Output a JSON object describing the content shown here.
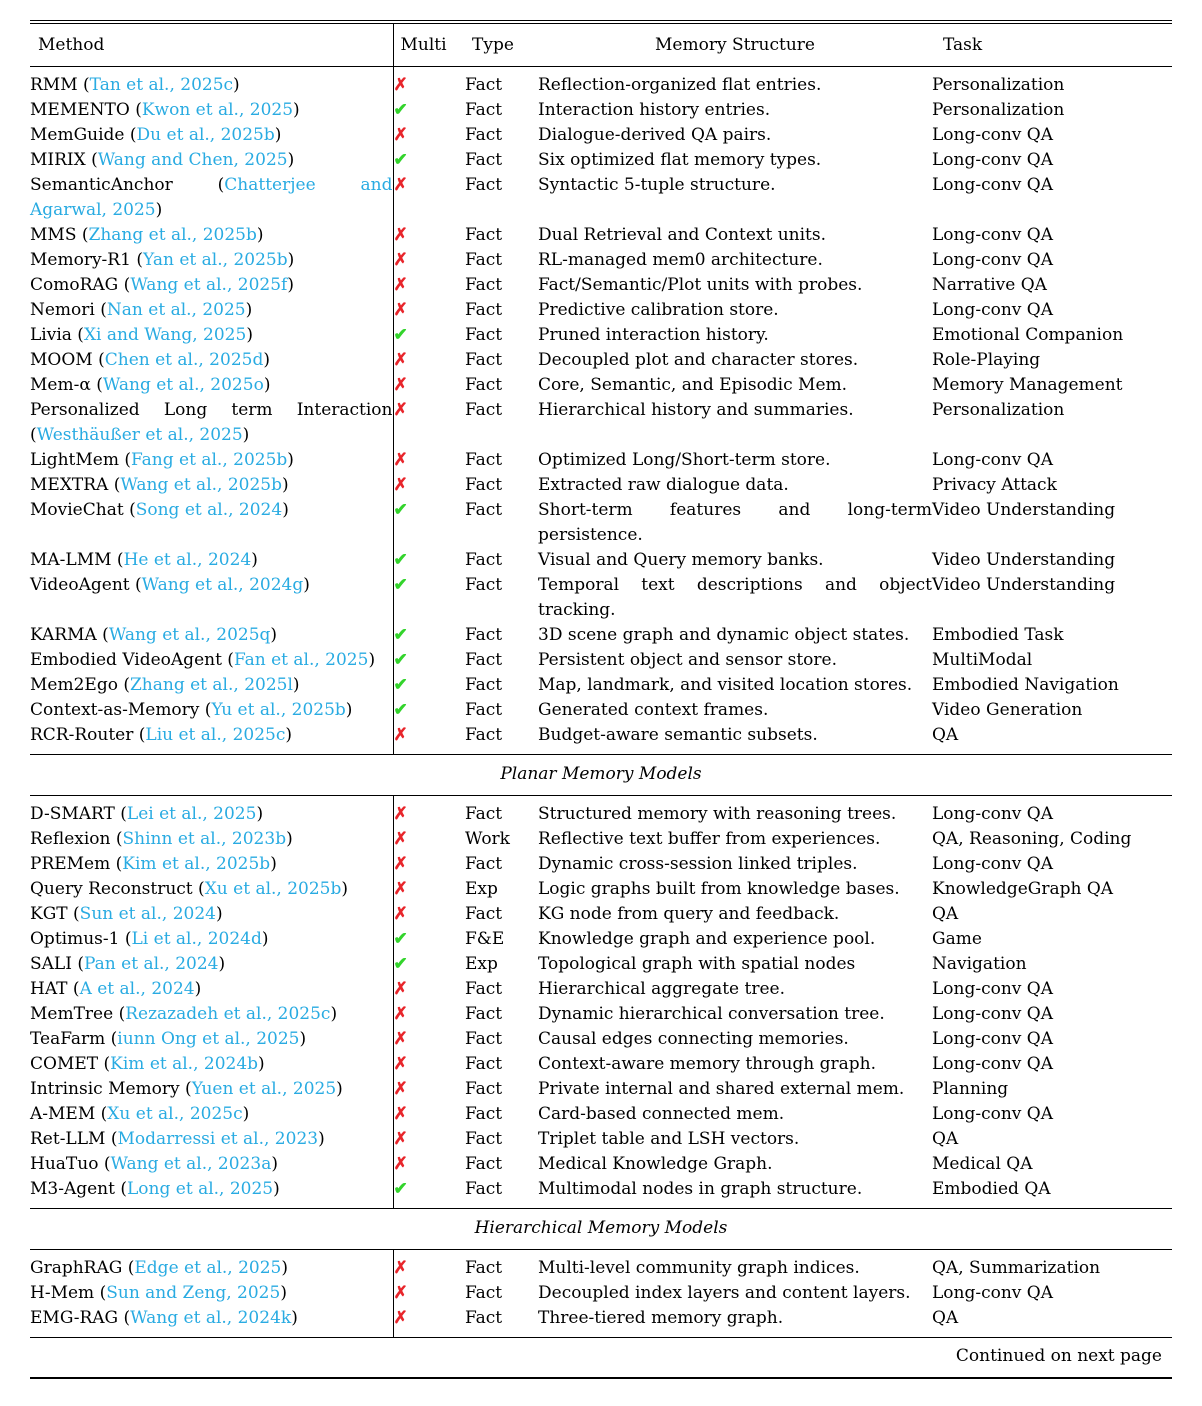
{
  "table": {
    "columns": [
      "Method",
      "Multi",
      "Type",
      "Memory Structure",
      "Task"
    ],
    "citation_format": {
      "open": " (",
      "close": ")"
    },
    "symbols": {
      "check": "✔",
      "cross": "✗"
    },
    "colors": {
      "citation": "#29abe2",
      "check": "#33d42c",
      "cross": "#e8252b",
      "rule": "#000000"
    },
    "footer": "Continued on next page",
    "sections": [
      {
        "title": "",
        "rows": [
          {
            "method": "RMM",
            "citation": "Tan et al., 2025c",
            "multi": false,
            "type": "Fact",
            "structure": "Reflection-organized flat entries.",
            "task": "Personalization"
          },
          {
            "method": "MEMENTO",
            "citation": "Kwon et al., 2025",
            "multi": true,
            "type": "Fact",
            "structure": "Interaction history entries.",
            "task": "Personalization"
          },
          {
            "method": "MemGuide",
            "citation": "Du et al., 2025b",
            "multi": false,
            "type": "Fact",
            "structure": "Dialogue-derived QA pairs.",
            "task": "Long-conv QA"
          },
          {
            "method": "MIRIX",
            "citation": "Wang and Chen, 2025",
            "multi": true,
            "type": "Fact",
            "structure": "Six optimized flat memory types.",
            "task": "Long-conv QA"
          },
          {
            "method": "SemanticAnchor",
            "citation": "Chatterjee and Agarwal, 2025",
            "multi": false,
            "type": "Fact",
            "structure": "Syntactic 5-tuple structure.",
            "task": "Long-conv QA"
          },
          {
            "method": "MMS",
            "citation": "Zhang et al., 2025b",
            "multi": false,
            "type": "Fact",
            "structure": "Dual Retrieval and Context units.",
            "task": "Long-conv QA"
          },
          {
            "method": "Memory-R1",
            "citation": "Yan et al., 2025b",
            "multi": false,
            "type": "Fact",
            "structure": "RL-managed mem0 architecture.",
            "task": "Long-conv QA"
          },
          {
            "method": "ComoRAG",
            "citation": "Wang et al., 2025f",
            "multi": false,
            "type": "Fact",
            "structure": "Fact/Semantic/Plot units with probes.",
            "task": "Narrative QA"
          },
          {
            "method": "Nemori",
            "citation": "Nan et al., 2025",
            "multi": false,
            "type": "Fact",
            "structure": "Predictive calibration store.",
            "task": "Long-conv QA"
          },
          {
            "method": "Livia",
            "citation": "Xi and Wang, 2025",
            "multi": true,
            "type": "Fact",
            "structure": "Pruned interaction history.",
            "task": "Emotional Companion"
          },
          {
            "method": "MOOM",
            "citation": "Chen et al., 2025d",
            "multi": false,
            "type": "Fact",
            "structure": "Decoupled plot and character stores.",
            "task": "Role-Playing"
          },
          {
            "method": "Mem-α",
            "citation": "Wang et al., 2025o",
            "multi": false,
            "type": "Fact",
            "structure": "Core, Semantic, and Episodic Mem.",
            "task": "Memory Management"
          },
          {
            "method": "Personalized Long term Interaction",
            "citation": "Westhäußer et al., 2025",
            "multi": false,
            "type": "Fact",
            "structure": "Hierarchical history and summaries.",
            "task": "Personalization"
          },
          {
            "method": "LightMem",
            "citation": "Fang et al., 2025b",
            "multi": false,
            "type": "Fact",
            "structure": "Optimized Long/Short-term store.",
            "task": "Long-conv QA"
          },
          {
            "method": "MEXTRA",
            "citation": "Wang et al., 2025b",
            "multi": false,
            "type": "Fact",
            "structure": "Extracted raw dialogue data.",
            "task": "Privacy Attack"
          },
          {
            "method": "MovieChat",
            "citation": "Song et al., 2024",
            "multi": true,
            "type": "Fact",
            "structure": "Short-term features and long-term persistence.",
            "task": "Video Understanding"
          },
          {
            "method": "MA-LMM",
            "citation": "He et al., 2024",
            "multi": true,
            "type": "Fact",
            "structure": "Visual and Query memory banks.",
            "task": "Video Understanding"
          },
          {
            "method": "VideoAgent",
            "citation": "Wang et al., 2024g",
            "multi": true,
            "type": "Fact",
            "structure": "Temporal text descriptions and object tracking.",
            "task": "Video Understanding"
          },
          {
            "method": "KARMA",
            "citation": "Wang et al., 2025q",
            "multi": true,
            "type": "Fact",
            "structure": "3D scene graph and dynamic object states.",
            "task": "Embodied Task"
          },
          {
            "method": "Embodied VideoAgent",
            "citation": "Fan et al., 2025",
            "multi": true,
            "type": "Fact",
            "structure": "Persistent object and sensor store.",
            "task": "MultiModal"
          },
          {
            "method": "Mem2Ego",
            "citation": "Zhang et al., 2025l",
            "multi": true,
            "type": "Fact",
            "structure": "Map, landmark, and visited location stores.",
            "task": "Embodied Navigation"
          },
          {
            "method": "Context-as-Memory",
            "citation": "Yu et al., 2025b",
            "multi": true,
            "type": "Fact",
            "structure": "Generated context frames.",
            "task": "Video Generation"
          },
          {
            "method": "RCR-Router",
            "citation": "Liu et al., 2025c",
            "multi": false,
            "type": "Fact",
            "structure": "Budget-aware semantic subsets.",
            "task": "QA"
          }
        ]
      },
      {
        "title": "Planar Memory Models",
        "rows": [
          {
            "method": "D-SMART",
            "citation": "Lei et al., 2025",
            "multi": false,
            "type": "Fact",
            "structure": "Structured memory with reasoning trees.",
            "task": "Long-conv QA"
          },
          {
            "method": "Reflexion",
            "citation": "Shinn et al., 2023b",
            "multi": false,
            "type": "Work",
            "structure": "Reflective text buffer from experiences.",
            "task": "QA, Reasoning, Coding"
          },
          {
            "method": "PREMem",
            "citation": "Kim et al., 2025b",
            "multi": false,
            "type": "Fact",
            "structure": "Dynamic cross-session linked triples.",
            "task": "Long-conv QA"
          },
          {
            "method": "Query Reconstruct",
            "citation": "Xu et al., 2025b",
            "multi": false,
            "type": "Exp",
            "structure": "Logic graphs built from knowledge bases.",
            "task": "KnowledgeGraph QA"
          },
          {
            "method": "KGT",
            "citation": "Sun et al., 2024",
            "multi": false,
            "type": "Fact",
            "structure": "KG node from query and feedback.",
            "task": "QA"
          },
          {
            "method": "Optimus-1",
            "citation": "Li et al., 2024d",
            "multi": true,
            "type": "F&E",
            "structure": "Knowledge graph and experience pool.",
            "task": "Game"
          },
          {
            "method": "SALI",
            "citation": "Pan et al., 2024",
            "multi": true,
            "type": "Exp",
            "structure": "Topological graph with spatial nodes",
            "task": "Navigation"
          },
          {
            "method": "HAT",
            "citation": "A et al., 2024",
            "multi": false,
            "type": "Fact",
            "structure": "Hierarchical aggregate tree.",
            "task": "Long-conv QA"
          },
          {
            "method": "MemTree",
            "citation": "Rezazadeh et al., 2025c",
            "multi": false,
            "type": "Fact",
            "structure": "Dynamic hierarchical conversation tree.",
            "task": "Long-conv QA"
          },
          {
            "method": "TeaFarm",
            "citation": "iunn Ong et al., 2025",
            "multi": false,
            "type": "Fact",
            "structure": "Causal edges connecting memories.",
            "task": "Long-conv QA"
          },
          {
            "method": "COMET",
            "citation": "Kim et al., 2024b",
            "multi": false,
            "type": "Fact",
            "structure": "Context-aware memory through graph.",
            "task": "Long-conv QA"
          },
          {
            "method": "Intrinsic Memory",
            "citation": "Yuen et al., 2025",
            "multi": false,
            "type": "Fact",
            "structure": "Private internal and shared external mem.",
            "task": "Planning"
          },
          {
            "method": "A-MEM",
            "citation": "Xu et al., 2025c",
            "multi": false,
            "type": "Fact",
            "structure": "Card-based connected mem.",
            "task": "Long-conv QA"
          },
          {
            "method": "Ret-LLM",
            "citation": "Modarressi et al., 2023",
            "multi": false,
            "type": "Fact",
            "structure": "Triplet table and LSH vectors.",
            "task": "QA"
          },
          {
            "method": "HuaTuo",
            "citation": "Wang et al., 2023a",
            "multi": false,
            "type": "Fact",
            "structure": "Medical Knowledge Graph.",
            "task": "Medical QA"
          },
          {
            "method": "M3-Agent",
            "citation": "Long et al., 2025",
            "multi": true,
            "type": "Fact",
            "structure": "Multimodal nodes in graph structure.",
            "task": "Embodied QA"
          }
        ]
      },
      {
        "title": "Hierarchical Memory Models",
        "rows": [
          {
            "method": "GraphRAG",
            "citation": "Edge et al., 2025",
            "multi": false,
            "type": "Fact",
            "structure": "Multi-level community graph indices.",
            "task": "QA, Summarization"
          },
          {
            "method": "H-Mem",
            "citation": "Sun and Zeng, 2025",
            "multi": false,
            "type": "Fact",
            "structure": "Decoupled index layers and content layers.",
            "task": "Long-conv QA"
          },
          {
            "method": "EMG-RAG",
            "citation": "Wang et al., 2024k",
            "multi": false,
            "type": "Fact",
            "structure": "Three-tiered memory graph.",
            "task": "QA"
          }
        ]
      }
    ]
  }
}
